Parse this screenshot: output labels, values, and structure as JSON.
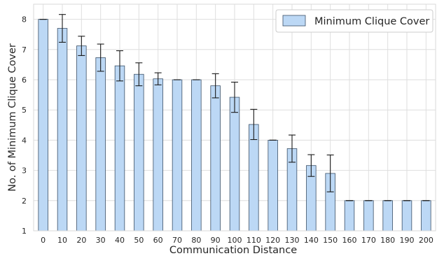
{
  "chart_data": {
    "type": "bar",
    "xlabel": "Communication Distance",
    "ylabel": "No. of Minimum Clique Cover",
    "ylim": [
      1,
      8.5
    ],
    "yticks": [
      1,
      2,
      3,
      4,
      5,
      6,
      7,
      8
    ],
    "grid": true,
    "legend_position": "top-right",
    "categories": [
      "0",
      "10",
      "20",
      "30",
      "40",
      "50",
      "60",
      "70",
      "80",
      "90",
      "100",
      "110",
      "120",
      "130",
      "140",
      "150",
      "160",
      "170",
      "180",
      "190",
      "200"
    ],
    "series": [
      {
        "name": "Minimum Clique Cover",
        "color": "#bcd8f5",
        "edge_color": "#3a4f66",
        "values": [
          8.0,
          7.7,
          7.12,
          6.73,
          6.46,
          6.18,
          6.03,
          6.0,
          6.0,
          5.8,
          5.42,
          4.52,
          4.0,
          3.72,
          3.16,
          2.9,
          2.0,
          2.0,
          2.0,
          2.0,
          2.0
        ],
        "errors": [
          0.0,
          0.46,
          0.32,
          0.45,
          0.5,
          0.38,
          0.2,
          0.0,
          0.0,
          0.4,
          0.5,
          0.5,
          0.0,
          0.45,
          0.36,
          0.61,
          0.0,
          0.0,
          0.0,
          0.0,
          0.0
        ]
      }
    ]
  }
}
